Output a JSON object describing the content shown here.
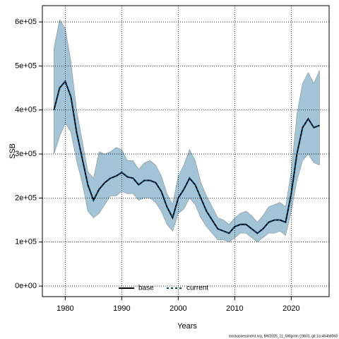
{
  "chart_data": {
    "type": "line",
    "x_label": "Years",
    "y_label": "SSB",
    "footer": "stockassessment.org, BW2025_11_SWgrmt.r19601, git:1cc464b8068",
    "x": [
      1978,
      1979,
      1980,
      1981,
      1982,
      1983,
      1984,
      1985,
      1986,
      1987,
      1988,
      1989,
      1990,
      1991,
      1992,
      1993,
      1994,
      1995,
      1996,
      1997,
      1998,
      1999,
      2000,
      2001,
      2002,
      2003,
      2004,
      2005,
      2006,
      2007,
      2008,
      2009,
      2010,
      2011,
      2012,
      2013,
      2014,
      2015,
      2016,
      2017,
      2018,
      2019,
      2020,
      2021,
      2022,
      2023,
      2024,
      2025
    ],
    "series": [
      {
        "name": "base",
        "color": "#000000",
        "dashed": false,
        "values": [
          400000,
          450000,
          465000,
          430000,
          350000,
          290000,
          230000,
          195000,
          220000,
          235000,
          245000,
          250000,
          258000,
          248000,
          245000,
          230000,
          240000,
          240000,
          235000,
          215000,
          180000,
          155000,
          200000,
          220000,
          245000,
          230000,
          200000,
          170000,
          150000,
          130000,
          125000,
          120000,
          135000,
          140000,
          140000,
          130000,
          120000,
          130000,
          145000,
          150000,
          150000,
          145000,
          210000,
          300000,
          360000,
          380000,
          360000,
          365000
        ]
      },
      {
        "name": "current",
        "color": "#00426b",
        "dashed": true,
        "values": [
          400000,
          450000,
          465000,
          430000,
          350000,
          290000,
          230000,
          195000,
          220000,
          235000,
          245000,
          250000,
          258000,
          248000,
          245000,
          230000,
          240000,
          240000,
          235000,
          215000,
          180000,
          155000,
          200000,
          220000,
          245000,
          230000,
          200000,
          170000,
          150000,
          130000,
          125000,
          120000,
          135000,
          140000,
          140000,
          130000,
          120000,
          130000,
          145000,
          150000,
          150000,
          145000,
          210000,
          300000,
          360000,
          380000,
          360000,
          365000
        ]
      }
    ],
    "band": {
      "color": "#a3c4d6",
      "upper": [
        540000,
        605000,
        585000,
        510000,
        400000,
        330000,
        260000,
        245000,
        305000,
        300000,
        305000,
        315000,
        310000,
        285000,
        285000,
        265000,
        280000,
        285000,
        275000,
        250000,
        210000,
        185000,
        250000,
        275000,
        310000,
        285000,
        235000,
        205000,
        180000,
        155000,
        150000,
        140000,
        155000,
        165000,
        170000,
        160000,
        145000,
        160000,
        180000,
        185000,
        190000,
        180000,
        260000,
        390000,
        460000,
        485000,
        460000,
        490000
      ],
      "lower": [
        300000,
        340000,
        370000,
        350000,
        285000,
        235000,
        170000,
        155000,
        165000,
        185000,
        205000,
        205000,
        215000,
        210000,
        210000,
        195000,
        200000,
        200000,
        190000,
        170000,
        140000,
        125000,
        165000,
        175000,
        200000,
        185000,
        155000,
        135000,
        120000,
        105000,
        105000,
        100000,
        110000,
        120000,
        120000,
        110000,
        100000,
        110000,
        120000,
        120000,
        125000,
        115000,
        170000,
        240000,
        285000,
        300000,
        280000,
        275000
      ]
    },
    "xlim": [
      1975.95,
      2026.7
    ],
    "ylim": [
      -24000,
      637000
    ],
    "xticks": [
      1980,
      1990,
      2000,
      2010,
      2020
    ],
    "yticks": [
      {
        "value": 0,
        "label": "0e+00"
      },
      {
        "value": 100000,
        "label": "1e+05"
      },
      {
        "value": 200000,
        "label": "2e+05"
      },
      {
        "value": 300000,
        "label": "3e+05"
      },
      {
        "value": 400000,
        "label": "4e+05"
      },
      {
        "value": 500000,
        "label": "5e+05"
      },
      {
        "value": 600000,
        "label": "6e+05"
      }
    ],
    "grid": true,
    "legend": "bottom"
  }
}
